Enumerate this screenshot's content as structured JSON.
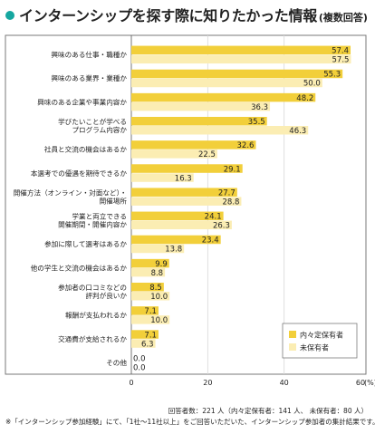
{
  "title": "インターンシップを探す際に知りたかった情報",
  "subtitle": "(複数回答)",
  "colors": {
    "accent": "#16a7a0",
    "series1": "#f2cf3a",
    "series2": "#fbedb3",
    "border": "#7a7a7a"
  },
  "chart_data": {
    "type": "bar",
    "orientation": "horizontal",
    "categories": [
      "興味のある仕事・職種か",
      "興味のある業界・業種か",
      "興味のある企業や事業内容か",
      "学びたいことが学べる\nプログラム内容か",
      "社員と交流の機会はあるか",
      "本選考での優遇を期待できるか",
      "開催方法（オンライン・対面など）・\n開催場所",
      "学業と両立できる\n開催期間・開催内容か",
      "参加に際して選考はあるか",
      "他の学生と交流の機会はあるか",
      "参加者の口コミなどの\n評判が良いか",
      "報酬が支払われるか",
      "交通費が支給されるか",
      "その他"
    ],
    "series": [
      {
        "name": "内々定保有者",
        "values": [
          57.4,
          55.3,
          48.2,
          35.5,
          32.6,
          29.1,
          27.7,
          24.1,
          23.4,
          9.9,
          8.5,
          7.1,
          7.1,
          0.0
        ]
      },
      {
        "name": "未保有者",
        "values": [
          57.5,
          50.0,
          36.3,
          46.3,
          22.5,
          16.3,
          28.8,
          26.3,
          13.8,
          8.8,
          10.0,
          10.0,
          6.3,
          0.0
        ]
      }
    ],
    "x_ticks": [
      "0",
      "20",
      "40",
      "60"
    ],
    "x_unit": "(%)",
    "xlim": [
      0,
      60
    ],
    "legend_position": "bottom-right"
  },
  "notes": {
    "respondents": "回答者数：221 人（内々定保有者：141 人、 未保有者：80 人）",
    "footnote": "※「インターンシップ参加経験」にて、「1社～11社以上」をご回答いただいた、インターンシップ参加者の集計結果です。"
  }
}
